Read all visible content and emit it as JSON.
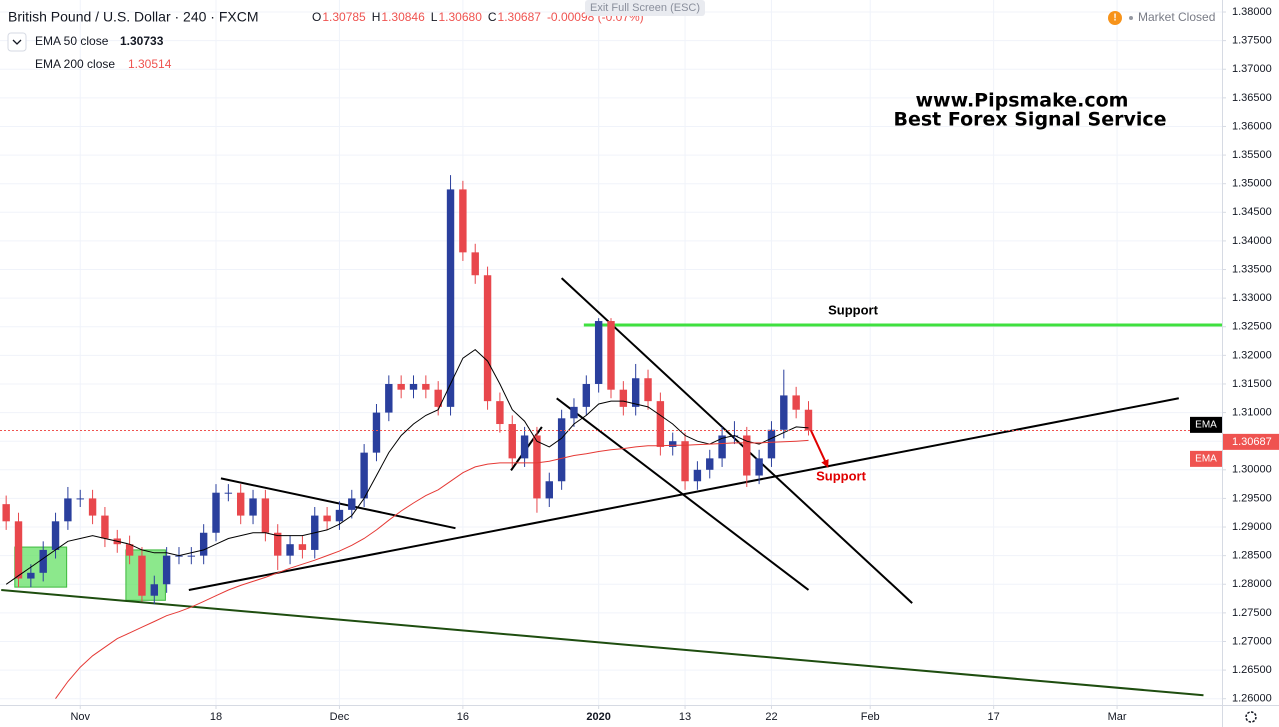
{
  "header": {
    "symbol": "British Pound / U.S. Dollar · 240 · FXCM",
    "ohlc": [
      {
        "key": "O",
        "value": "1.30785"
      },
      {
        "key": "H",
        "value": "1.30846"
      },
      {
        "key": "L",
        "value": "1.30680"
      },
      {
        "key": "C",
        "value": "1.30687"
      }
    ],
    "change": "-0.00098 (-0.07%)",
    "status": "Market Closed",
    "exit": "Exit Full Screen (ESC)"
  },
  "chart_data": {
    "type": "candlestick",
    "x": [
      -6,
      -5,
      -4,
      -3,
      -2,
      -1,
      0,
      1,
      2,
      3,
      4,
      5,
      6,
      7,
      8,
      9,
      10,
      11,
      12,
      13,
      14,
      15,
      16,
      17,
      18,
      19,
      20,
      21,
      22,
      23,
      24,
      25,
      26,
      27,
      28,
      29,
      30,
      31,
      32,
      33,
      34,
      35,
      36,
      37,
      38,
      39,
      40,
      41,
      42,
      43,
      44,
      45,
      46,
      47,
      48,
      49,
      50,
      51,
      52,
      53,
      54,
      55,
      56,
      57,
      58,
      59
    ],
    "open": [
      1.294,
      1.291,
      1.281,
      1.282,
      1.286,
      1.291,
      1.295,
      1.295,
      1.292,
      1.288,
      1.287,
      1.285,
      1.278,
      1.28,
      1.285,
      1.285,
      1.285,
      1.289,
      1.296,
      1.296,
      1.292,
      1.295,
      1.289,
      1.285,
      1.287,
      1.286,
      1.292,
      1.291,
      1.293,
      1.295,
      1.303,
      1.31,
      1.315,
      1.314,
      1.315,
      1.314,
      1.311,
      1.349,
      1.338,
      1.334,
      1.312,
      1.308,
      1.302,
      1.306,
      1.295,
      1.298,
      1.309,
      1.311,
      1.315,
      1.326,
      1.314,
      1.311,
      1.316,
      1.312,
      1.304,
      1.305,
      1.298,
      1.3,
      1.302,
      1.306,
      1.306,
      1.299,
      1.302,
      1.307,
      1.313,
      1.3105
    ],
    "high": [
      1.2955,
      1.2925,
      1.2835,
      1.2875,
      1.2925,
      1.297,
      1.2965,
      1.2965,
      1.2935,
      1.2895,
      1.2885,
      1.2865,
      1.2815,
      1.2865,
      1.2865,
      1.2865,
      1.2905,
      1.2975,
      1.2975,
      1.2975,
      1.2965,
      1.2965,
      1.2905,
      1.2885,
      1.2885,
      1.2935,
      1.2935,
      1.2945,
      1.2965,
      1.3045,
      1.3115,
      1.3165,
      1.3165,
      1.3165,
      1.3165,
      1.3155,
      1.3515,
      1.3505,
      1.3395,
      1.3355,
      1.3135,
      1.3095,
      1.3075,
      1.3075,
      1.2995,
      1.3105,
      1.3125,
      1.3165,
      1.3265,
      1.3265,
      1.3155,
      1.3185,
      1.3175,
      1.3135,
      1.3065,
      1.3065,
      1.3015,
      1.3035,
      1.3075,
      1.3085,
      1.3075,
      1.3035,
      1.3085,
      1.3175,
      1.3145,
      1.312
    ],
    "low": [
      1.2895,
      1.2795,
      1.2795,
      1.2805,
      1.2845,
      1.2895,
      1.2935,
      1.2905,
      1.2865,
      1.2855,
      1.2835,
      1.277,
      1.2765,
      1.2785,
      1.2835,
      1.2835,
      1.2835,
      1.2875,
      1.2945,
      1.2905,
      1.2905,
      1.2875,
      1.2825,
      1.2835,
      1.2845,
      1.2845,
      1.2895,
      1.2895,
      1.2915,
      1.2935,
      1.3015,
      1.3085,
      1.3125,
      1.3125,
      1.3125,
      1.3095,
      1.3095,
      1.3365,
      1.3325,
      1.3105,
      1.3065,
      1.3005,
      1.3005,
      1.2925,
      1.2935,
      1.2965,
      1.3075,
      1.3095,
      1.3135,
      1.3125,
      1.3095,
      1.3095,
      1.3105,
      1.3025,
      1.3025,
      1.2965,
      1.2965,
      1.2985,
      1.3005,
      1.3045,
      1.297,
      1.2975,
      1.3005,
      1.3055,
      1.309,
      1.306
    ],
    "close": [
      1.291,
      1.281,
      1.282,
      1.286,
      1.291,
      1.295,
      1.295,
      1.292,
      1.288,
      1.287,
      1.285,
      1.278,
      1.28,
      1.285,
      1.285,
      1.285,
      1.289,
      1.296,
      1.296,
      1.292,
      1.295,
      1.289,
      1.285,
      1.287,
      1.286,
      1.292,
      1.291,
      1.293,
      1.295,
      1.303,
      1.31,
      1.315,
      1.314,
      1.315,
      1.314,
      1.311,
      1.349,
      1.338,
      1.334,
      1.312,
      1.308,
      1.302,
      1.306,
      1.295,
      1.298,
      1.309,
      1.311,
      1.315,
      1.326,
      1.314,
      1.311,
      1.316,
      1.312,
      1.304,
      1.305,
      1.298,
      1.3,
      1.302,
      1.306,
      1.306,
      1.299,
      1.302,
      1.307,
      1.313,
      1.3105,
      1.30687
    ],
    "up_color": "#2a3f9d",
    "down_color": "#e8474c",
    "lines": [
      {
        "name": "EMA 50 close",
        "tag": "EMA",
        "color": "#000000",
        "values": [
          1.28,
          1.2815,
          1.283,
          1.2845,
          1.286,
          1.2875,
          1.288,
          1.2885,
          1.288,
          1.2875,
          1.287,
          1.286,
          1.2855,
          1.2855,
          1.285,
          1.2855,
          1.286,
          1.287,
          1.288,
          1.2885,
          1.289,
          1.289,
          1.2885,
          1.2885,
          1.2885,
          1.289,
          1.2895,
          1.2905,
          1.292,
          1.295,
          1.299,
          1.303,
          1.306,
          1.308,
          1.3095,
          1.3105,
          1.315,
          1.3195,
          1.321,
          1.319,
          1.315,
          1.3105,
          1.3085,
          1.305,
          1.304,
          1.3055,
          1.308,
          1.3095,
          1.3115,
          1.312,
          1.312,
          1.3115,
          1.311,
          1.3095,
          1.308,
          1.306,
          1.305,
          1.3045,
          1.3055,
          1.306,
          1.305,
          1.3045,
          1.3055,
          1.3065,
          1.3075,
          1.30733
        ]
      },
      {
        "name": "EMA 200 close",
        "tag": "EMA",
        "color": "#e53935",
        "values": [
          null,
          null,
          null,
          null,
          1.26,
          1.263,
          1.2655,
          1.2675,
          1.269,
          1.2705,
          1.2715,
          1.2725,
          1.2735,
          1.2745,
          1.2752,
          1.276,
          1.277,
          1.278,
          1.279,
          1.2798,
          1.2805,
          1.2812,
          1.282,
          1.2828,
          1.2835,
          1.2842,
          1.285,
          1.2858,
          1.2868,
          1.288,
          1.2895,
          1.2912,
          1.2928,
          1.2942,
          1.2955,
          1.2965,
          1.298,
          1.2995,
          1.3005,
          1.301,
          1.3012,
          1.3012,
          1.3012,
          1.3012,
          1.3015,
          1.302,
          1.3025,
          1.3028,
          1.3032,
          1.3035,
          1.3037,
          1.304,
          1.3042,
          1.3042,
          1.3043,
          1.3043,
          1.3044,
          1.3045,
          1.3046,
          1.3047,
          1.3047,
          1.3047,
          1.3048,
          1.3049,
          1.305,
          1.30514
        ]
      }
    ],
    "drawings": [
      {
        "x": [
          -6.4,
          91.0
        ],
        "y": [
          1.279,
          1.2606
        ],
        "color": "#1e4d0f"
      },
      {
        "x": [
          8.8,
          89.0
        ],
        "y": [
          1.279,
          1.3125
        ],
        "color": "#000000"
      },
      {
        "x": [
          11.4,
          30.4
        ],
        "y": [
          1.2985,
          1.2898
        ],
        "color": "#000000"
      },
      {
        "x": [
          39.0,
          67.4
        ],
        "y": [
          1.3335,
          1.2767
        ],
        "color": "#000000"
      },
      {
        "x": [
          38.6,
          59.0
        ],
        "y": [
          1.3125,
          1.279
        ],
        "color": "#000000"
      },
      {
        "x": [
          34.9,
          37.4
        ],
        "y": [
          1.2999,
          1.3075
        ],
        "color": "#000000"
      },
      {
        "x": [
          40.8,
          92.5
        ],
        "y": [
          1.3253,
          1.3253
        ],
        "color": "#3fe03f"
      },
      {
        "x": [
          59.0,
          60.5
        ],
        "y": [
          1.3078,
          1.3008
        ],
        "color": "#e00000",
        "arrow": true
      }
    ],
    "boxes": [
      {
        "x": [
          -5.3,
          -1.1
        ],
        "y": [
          1.2865,
          1.2795
        ],
        "color": "#66e066"
      },
      {
        "x": [
          3.7,
          6.9
        ],
        "y": [
          1.286,
          1.2772
        ],
        "color": "#66e066"
      }
    ],
    "annotations": [
      "Support",
      "Support",
      "www.Pipsmake.com",
      "Best Forex Signal Service"
    ],
    "xlim": [
      -6.5,
      92.5
    ],
    "xticks": [
      {
        "value": 0,
        "label": "Nov"
      },
      {
        "value": 11,
        "label": "18"
      },
      {
        "value": 21,
        "label": "Dec"
      },
      {
        "value": 31,
        "label": "16"
      },
      {
        "value": 42,
        "label": "2020"
      },
      {
        "value": 49,
        "label": "13"
      },
      {
        "value": 56,
        "label": "22"
      },
      {
        "value": 64,
        "label": "Feb"
      },
      {
        "value": 74,
        "label": "17"
      },
      {
        "value": 84,
        "label": "Mar"
      }
    ],
    "ylim": [
      1.2589,
      1.3821
    ],
    "yticks": [
      {
        "value": 1.26,
        "label": "1.26000"
      },
      {
        "value": 1.265,
        "label": "1.26500"
      },
      {
        "value": 1.27,
        "label": "1.27000"
      },
      {
        "value": 1.275,
        "label": "1.27500"
      },
      {
        "value": 1.28,
        "label": "1.28000"
      },
      {
        "value": 1.285,
        "label": "1.28500"
      },
      {
        "value": 1.29,
        "label": "1.29000"
      },
      {
        "value": 1.295,
        "label": "1.29500"
      },
      {
        "value": 1.3,
        "label": "1.30000"
      },
      {
        "value": 1.305,
        "label": "1.30500"
      },
      {
        "value": 1.31,
        "label": "1.31000"
      },
      {
        "value": 1.315,
        "label": "1.31500"
      },
      {
        "value": 1.32,
        "label": "1.32000"
      },
      {
        "value": 1.325,
        "label": "1.32500"
      },
      {
        "value": 1.33,
        "label": "1.33000"
      },
      {
        "value": 1.335,
        "label": "1.33500"
      },
      {
        "value": 1.34,
        "label": "1.34000"
      },
      {
        "value": 1.345,
        "label": "1.34500"
      },
      {
        "value": 1.35,
        "label": "1.35000"
      },
      {
        "value": 1.355,
        "label": "1.35500"
      },
      {
        "value": 1.36,
        "label": "1.36000"
      },
      {
        "value": 1.365,
        "label": "1.36500"
      },
      {
        "value": 1.37,
        "label": "1.37000"
      },
      {
        "value": 1.375,
        "label": "1.37500"
      },
      {
        "value": 1.38,
        "label": "1.38000"
      }
    ],
    "grid": true
  }
}
